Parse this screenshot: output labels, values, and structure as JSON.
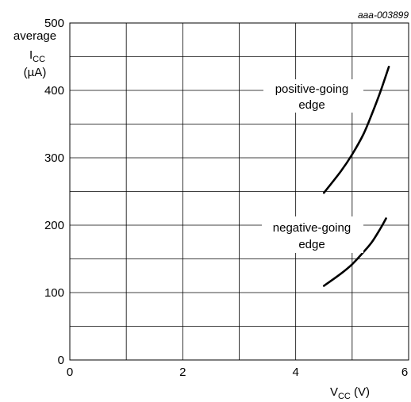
{
  "chart_data": {
    "type": "line",
    "reference": "aaa-003899",
    "ylabel": {
      "line1": "average",
      "main": "I",
      "sub": "CC",
      "unit": "(µA)"
    },
    "xlabel": {
      "main": "V",
      "sub": "CC",
      "unit": " (V)"
    },
    "xlim": [
      0,
      6
    ],
    "ylim": [
      0,
      500
    ],
    "x_ticks": [
      "0",
      "2",
      "4",
      "6"
    ],
    "x_tick_values": [
      0,
      2,
      4,
      6
    ],
    "y_ticks": [
      "0",
      "100",
      "200",
      "300",
      "400",
      "500"
    ],
    "y_tick_values": [
      0,
      100,
      200,
      300,
      400,
      500
    ],
    "x_grid_step": 1,
    "y_grid_step": 50,
    "grid": true,
    "series": [
      {
        "annotation_line1": "positive-going",
        "annotation_line2": "edge",
        "x": [
          4.5,
          4.8,
          5.0,
          5.2,
          5.35,
          5.5,
          5.65
        ],
        "y": [
          248,
          280,
          305,
          335,
          365,
          398,
          435
        ]
      },
      {
        "annotation_line1": "negative-going",
        "annotation_line2": "edge",
        "x": [
          4.5,
          4.8,
          5.0,
          5.2,
          5.35,
          5.5,
          5.6
        ],
        "y": [
          110,
          128,
          142,
          160,
          175,
          195,
          210
        ]
      }
    ]
  }
}
